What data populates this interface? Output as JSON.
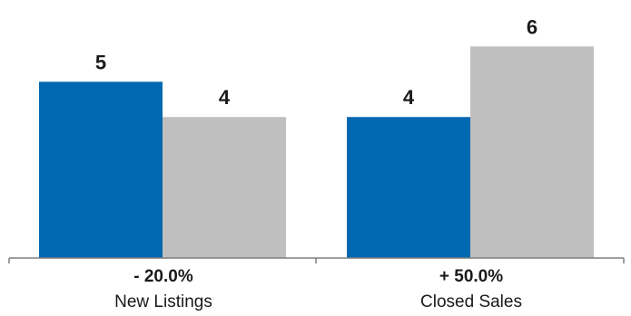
{
  "chart_data": {
    "type": "bar",
    "categories": [
      "New Listings",
      "Closed Sales"
    ],
    "change_labels": [
      "- 20.0%",
      "+ 50.0%"
    ],
    "series": [
      {
        "color": "#0068B0",
        "values": [
          5,
          4
        ]
      },
      {
        "color": "#BFBFBF",
        "values": [
          4,
          6
        ]
      }
    ],
    "ylim": [
      0,
      6.6
    ],
    "grid": false,
    "legend": "none",
    "axis_color": "#7F7F7F"
  }
}
